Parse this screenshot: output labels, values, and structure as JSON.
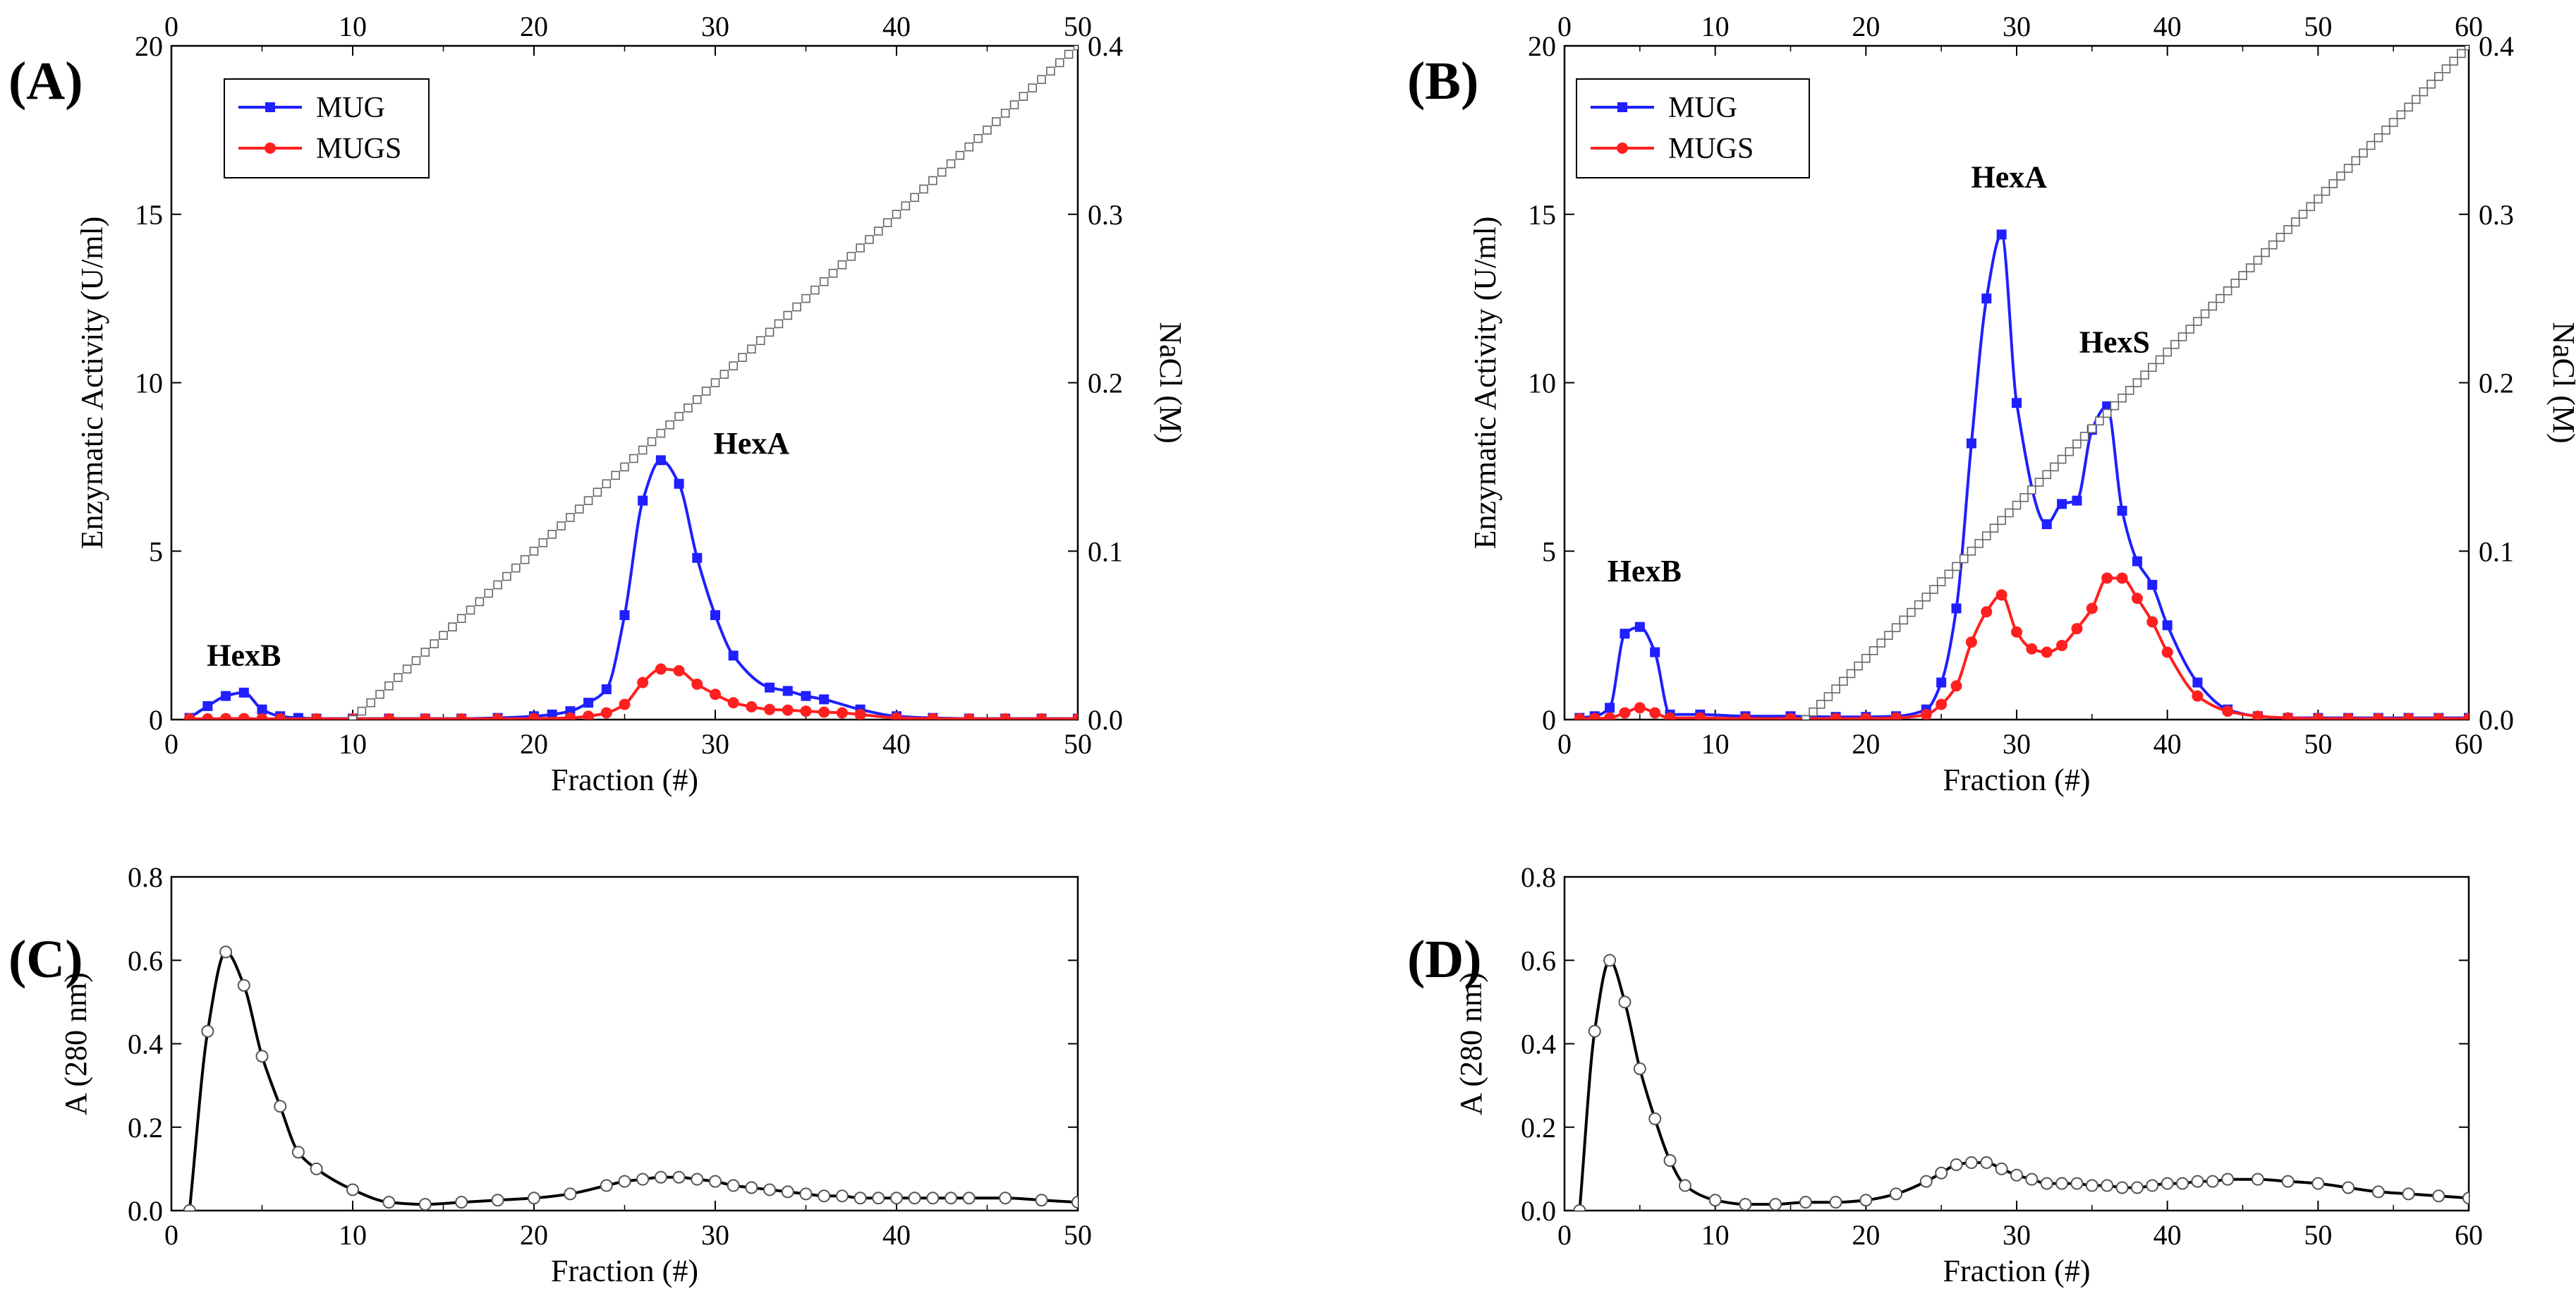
{
  "chart_data": [
    {
      "panel": "(A)",
      "type": "line",
      "xlabel": "Fraction (#)",
      "ylabel": "Enzymatic Activity (U/ml)",
      "y2label": "NaCl (M)",
      "xlim": [
        0,
        50
      ],
      "ylim": [
        0,
        20
      ],
      "y2lim": [
        0,
        0.4
      ],
      "xticks": [
        0,
        10,
        20,
        30,
        40,
        50
      ],
      "yticks": [
        0,
        5,
        10,
        15,
        20
      ],
      "y2ticks": [
        0.0,
        0.1,
        0.2,
        0.3,
        0.4
      ],
      "legend": [
        "MUG",
        "MUGS"
      ],
      "annotations": [
        {
          "text": "HexB",
          "x": 4,
          "y": 1.6
        },
        {
          "text": "HexA",
          "x": 32,
          "y": 7.9
        }
      ],
      "series": [
        {
          "name": "MUG",
          "color": "#1f1fff",
          "marker": "square",
          "x": [
            1,
            2,
            3,
            4,
            5,
            6,
            7,
            8,
            10,
            12,
            14,
            16,
            18,
            20,
            21,
            22,
            23,
            24,
            25,
            26,
            27,
            28,
            29,
            30,
            31,
            33,
            34,
            35,
            36,
            38,
            40,
            42,
            44,
            46,
            48,
            50
          ],
          "y": [
            0.05,
            0.4,
            0.7,
            0.8,
            0.3,
            0.1,
            0.05,
            0.03,
            0.03,
            0.03,
            0.03,
            0.03,
            0.05,
            0.1,
            0.15,
            0.25,
            0.5,
            0.9,
            3.1,
            6.5,
            7.7,
            7.0,
            4.8,
            3.1,
            1.9,
            0.95,
            0.85,
            0.7,
            0.6,
            0.3,
            0.1,
            0.05,
            0.03,
            0.03,
            0.03,
            0.03
          ]
        },
        {
          "name": "MUGS",
          "color": "#ff1f1f",
          "marker": "circle",
          "x": [
            1,
            2,
            3,
            4,
            5,
            6,
            8,
            10,
            12,
            14,
            16,
            18,
            20,
            22,
            23,
            24,
            25,
            26,
            27,
            28,
            29,
            30,
            31,
            32,
            33,
            34,
            35,
            36,
            37,
            38,
            40,
            42,
            44,
            46,
            48,
            50
          ],
          "y": [
            0.02,
            0.02,
            0.03,
            0.03,
            0.02,
            0.02,
            0.02,
            0.02,
            0.02,
            0.02,
            0.02,
            0.02,
            0.03,
            0.05,
            0.1,
            0.2,
            0.45,
            1.1,
            1.5,
            1.45,
            1.05,
            0.75,
            0.5,
            0.38,
            0.3,
            0.28,
            0.25,
            0.22,
            0.2,
            0.15,
            0.05,
            0.03,
            0.02,
            0.02,
            0.02,
            0.02
          ]
        },
        {
          "name": "NaCl",
          "color": "#666666",
          "marker": "open-square",
          "axis": "y2",
          "x_start": 10,
          "x_end": 50,
          "x_step": 0.5,
          "y_start": 0.0,
          "y_end": 0.4
        }
      ]
    },
    {
      "panel": "(B)",
      "type": "line",
      "xlabel": "Fraction (#)",
      "ylabel": "Enzymatic Activity (U/ml)",
      "y2label": "NaCl (M)",
      "xlim": [
        0,
        60
      ],
      "ylim": [
        0,
        20
      ],
      "y2lim": [
        0,
        0.4
      ],
      "xticks": [
        0,
        10,
        20,
        30,
        40,
        50,
        60
      ],
      "yticks": [
        0,
        5,
        10,
        15,
        20
      ],
      "y2ticks": [
        0.0,
        0.1,
        0.2,
        0.3,
        0.4
      ],
      "legend": [
        "MUG",
        "MUGS"
      ],
      "annotations": [
        {
          "text": "HexB",
          "x": 5.3,
          "y": 4.1
        },
        {
          "text": "HexA",
          "x": 29.5,
          "y": 15.8
        },
        {
          "text": "HexS",
          "x": 36.5,
          "y": 10.9
        }
      ],
      "series": [
        {
          "name": "MUG",
          "color": "#1f1fff",
          "marker": "square",
          "x": [
            1,
            2,
            3,
            4,
            5,
            6,
            7,
            9,
            12,
            15,
            18,
            20,
            22,
            24,
            25,
            26,
            27,
            28,
            29,
            30,
            32,
            33,
            34,
            35,
            36,
            37,
            38,
            39,
            40,
            42,
            44,
            46,
            48,
            50,
            52,
            54,
            56,
            58,
            60
          ],
          "y": [
            0.05,
            0.1,
            0.35,
            2.55,
            2.75,
            2.0,
            0.15,
            0.15,
            0.1,
            0.1,
            0.08,
            0.08,
            0.1,
            0.3,
            1.1,
            3.3,
            8.2,
            12.5,
            14.4,
            9.4,
            5.8,
            6.4,
            6.5,
            8.6,
            9.3,
            6.2,
            4.7,
            4.0,
            2.8,
            1.1,
            0.3,
            0.1,
            0.05,
            0.05,
            0.05,
            0.05,
            0.05,
            0.05,
            0.05
          ]
        },
        {
          "name": "MUGS",
          "color": "#ff1f1f",
          "marker": "circle",
          "x": [
            1,
            2,
            3,
            4,
            5,
            6,
            7,
            9,
            12,
            15,
            18,
            20,
            22,
            24,
            25,
            26,
            27,
            28,
            29,
            30,
            31,
            32,
            33,
            34,
            35,
            36,
            37,
            38,
            39,
            40,
            42,
            44,
            46,
            48,
            50,
            52,
            54,
            56,
            58,
            60
          ],
          "y": [
            0.02,
            0.03,
            0.05,
            0.2,
            0.35,
            0.2,
            0.05,
            0.05,
            0.03,
            0.03,
            0.03,
            0.03,
            0.05,
            0.15,
            0.45,
            1.0,
            2.3,
            3.2,
            3.7,
            2.6,
            2.1,
            2.0,
            2.2,
            2.7,
            3.3,
            4.2,
            4.2,
            3.6,
            2.9,
            2.0,
            0.7,
            0.25,
            0.1,
            0.05,
            0.03,
            0.03,
            0.03,
            0.03,
            0.03,
            0.03
          ]
        },
        {
          "name": "NaCl",
          "color": "#666666",
          "marker": "open-square",
          "axis": "y2",
          "x_start": 16,
          "x_end": 60,
          "x_step": 0.5,
          "y_start": 0.0,
          "y_end": 0.4
        }
      ]
    },
    {
      "panel": "(C)",
      "type": "line",
      "xlabel": "Fraction (#)",
      "ylabel": "A (280 nm)",
      "xlim": [
        0,
        50
      ],
      "ylim": [
        0,
        0.8
      ],
      "xticks": [
        0,
        10,
        20,
        30,
        40,
        50
      ],
      "yticks": [
        0.0,
        0.2,
        0.4,
        0.6,
        0.8
      ],
      "series": [
        {
          "name": "A280",
          "color": "#000000",
          "marker": "open-circle",
          "x": [
            1,
            2,
            3,
            4,
            5,
            6,
            7,
            8,
            10,
            12,
            14,
            16,
            18,
            20,
            22,
            24,
            25,
            26,
            27,
            28,
            29,
            30,
            31,
            32,
            33,
            34,
            35,
            36,
            37,
            38,
            39,
            40,
            41,
            42,
            43,
            44,
            46,
            48,
            50
          ],
          "y": [
            0.0,
            0.43,
            0.62,
            0.54,
            0.37,
            0.25,
            0.14,
            0.1,
            0.05,
            0.02,
            0.015,
            0.02,
            0.025,
            0.03,
            0.04,
            0.06,
            0.07,
            0.075,
            0.08,
            0.08,
            0.075,
            0.07,
            0.06,
            0.055,
            0.05,
            0.045,
            0.04,
            0.035,
            0.035,
            0.03,
            0.03,
            0.03,
            0.03,
            0.03,
            0.03,
            0.03,
            0.03,
            0.025,
            0.02
          ]
        }
      ]
    },
    {
      "panel": "(D)",
      "type": "line",
      "xlabel": "Fraction (#)",
      "ylabel": "A (280 nm)",
      "xlim": [
        0,
        60
      ],
      "ylim": [
        0,
        0.8
      ],
      "xticks": [
        0,
        10,
        20,
        30,
        40,
        50,
        60
      ],
      "yticks": [
        0.0,
        0.2,
        0.4,
        0.6,
        0.8
      ],
      "series": [
        {
          "name": "A280",
          "color": "#000000",
          "marker": "open-circle",
          "x": [
            1,
            2,
            3,
            4,
            5,
            6,
            7,
            8,
            10,
            12,
            14,
            16,
            18,
            20,
            22,
            24,
            25,
            26,
            27,
            28,
            29,
            30,
            31,
            32,
            33,
            34,
            35,
            36,
            37,
            38,
            39,
            40,
            41,
            42,
            43,
            44,
            46,
            48,
            50,
            52,
            54,
            56,
            58,
            60
          ],
          "y": [
            0.0,
            0.43,
            0.6,
            0.5,
            0.34,
            0.22,
            0.12,
            0.06,
            0.025,
            0.015,
            0.015,
            0.02,
            0.02,
            0.025,
            0.04,
            0.07,
            0.09,
            0.11,
            0.115,
            0.115,
            0.1,
            0.085,
            0.075,
            0.065,
            0.065,
            0.065,
            0.06,
            0.06,
            0.055,
            0.055,
            0.06,
            0.065,
            0.065,
            0.07,
            0.07,
            0.075,
            0.075,
            0.07,
            0.065,
            0.055,
            0.045,
            0.04,
            0.035,
            0.03
          ]
        }
      ]
    }
  ]
}
